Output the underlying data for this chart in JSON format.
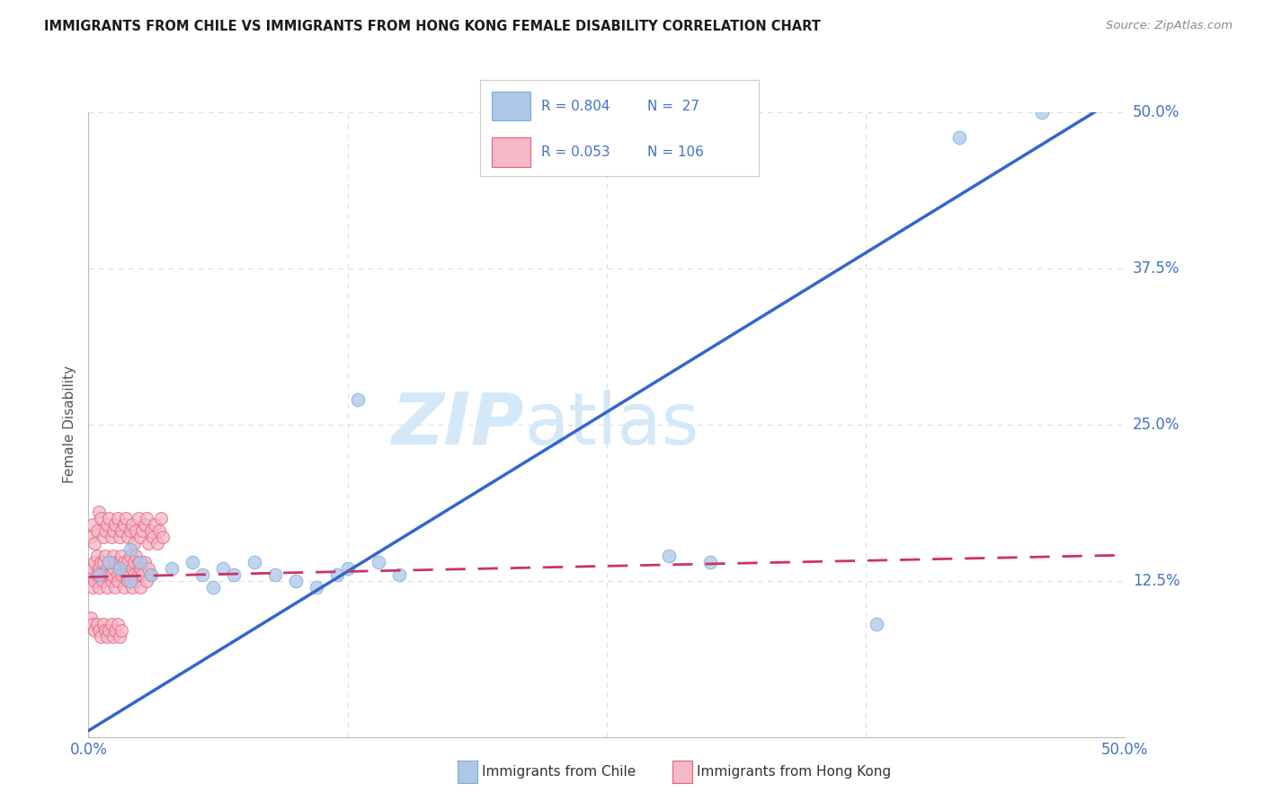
{
  "title": "IMMIGRANTS FROM CHILE VS IMMIGRANTS FROM HONG KONG FEMALE DISABILITY CORRELATION CHART",
  "source": "Source: ZipAtlas.com",
  "ylabel": "Female Disability",
  "xlim": [
    0.0,
    0.5
  ],
  "ylim": [
    0.0,
    0.5
  ],
  "chile_color": "#aec6e8",
  "chile_edge_color": "#7aafd4",
  "hk_color": "#f4b8c8",
  "hk_edge_color": "#e8607a",
  "chile_R": 0.804,
  "chile_N": 27,
  "hk_R": 0.053,
  "hk_N": 106,
  "chile_line_color": "#3366cc",
  "hk_line_color": "#cc3366",
  "watermark_zip": "ZIP",
  "watermark_atlas": "atlas",
  "watermark_color": "#d4e8f8",
  "background_color": "#ffffff",
  "grid_color": "#dddddd",
  "tick_color": "#4472c4",
  "chile_line_slope": 1.02,
  "chile_line_intercept": 0.005,
  "hk_line_slope": 0.035,
  "hk_line_intercept": 0.128,
  "chile_scatter_x": [
    0.005,
    0.01,
    0.015,
    0.02,
    0.02,
    0.025,
    0.03,
    0.04,
    0.05,
    0.055,
    0.06,
    0.065,
    0.07,
    0.08,
    0.09,
    0.1,
    0.11,
    0.12,
    0.125,
    0.13,
    0.14,
    0.15,
    0.28,
    0.3,
    0.38,
    0.42,
    0.46
  ],
  "chile_scatter_y": [
    0.13,
    0.14,
    0.135,
    0.125,
    0.15,
    0.14,
    0.13,
    0.135,
    0.14,
    0.13,
    0.12,
    0.135,
    0.13,
    0.14,
    0.13,
    0.125,
    0.12,
    0.13,
    0.135,
    0.27,
    0.14,
    0.13,
    0.145,
    0.14,
    0.09,
    0.48,
    0.5
  ],
  "hk_scatter_x": [
    0.001,
    0.002,
    0.002,
    0.003,
    0.003,
    0.004,
    0.004,
    0.005,
    0.005,
    0.006,
    0.006,
    0.007,
    0.007,
    0.008,
    0.008,
    0.009,
    0.009,
    0.01,
    0.01,
    0.011,
    0.011,
    0.012,
    0.012,
    0.013,
    0.013,
    0.014,
    0.014,
    0.015,
    0.015,
    0.016,
    0.016,
    0.017,
    0.017,
    0.018,
    0.018,
    0.019,
    0.019,
    0.02,
    0.02,
    0.021,
    0.021,
    0.022,
    0.022,
    0.023,
    0.023,
    0.024,
    0.024,
    0.025,
    0.025,
    0.026,
    0.027,
    0.028,
    0.029,
    0.03,
    0.001,
    0.002,
    0.003,
    0.004,
    0.005,
    0.006,
    0.007,
    0.008,
    0.009,
    0.01,
    0.011,
    0.012,
    0.013,
    0.014,
    0.015,
    0.016,
    0.017,
    0.018,
    0.019,
    0.02,
    0.021,
    0.022,
    0.023,
    0.024,
    0.025,
    0.026,
    0.027,
    0.028,
    0.029,
    0.03,
    0.031,
    0.032,
    0.033,
    0.034,
    0.035,
    0.036,
    0.001,
    0.002,
    0.003,
    0.004,
    0.005,
    0.006,
    0.007,
    0.008,
    0.009,
    0.01,
    0.011,
    0.012,
    0.013,
    0.014,
    0.015,
    0.016
  ],
  "hk_scatter_y": [
    0.13,
    0.135,
    0.12,
    0.14,
    0.125,
    0.13,
    0.145,
    0.12,
    0.135,
    0.14,
    0.13,
    0.125,
    0.14,
    0.13,
    0.145,
    0.12,
    0.135,
    0.13,
    0.14,
    0.125,
    0.13,
    0.145,
    0.135,
    0.12,
    0.14,
    0.13,
    0.125,
    0.14,
    0.135,
    0.13,
    0.145,
    0.12,
    0.14,
    0.135,
    0.13,
    0.125,
    0.14,
    0.13,
    0.145,
    0.135,
    0.12,
    0.14,
    0.13,
    0.125,
    0.145,
    0.13,
    0.14,
    0.135,
    0.12,
    0.13,
    0.14,
    0.125,
    0.135,
    0.13,
    0.16,
    0.17,
    0.155,
    0.165,
    0.18,
    0.175,
    0.16,
    0.165,
    0.17,
    0.175,
    0.16,
    0.165,
    0.17,
    0.175,
    0.16,
    0.165,
    0.17,
    0.175,
    0.16,
    0.165,
    0.17,
    0.155,
    0.165,
    0.175,
    0.16,
    0.165,
    0.17,
    0.175,
    0.155,
    0.165,
    0.16,
    0.17,
    0.155,
    0.165,
    0.175,
    0.16,
    0.095,
    0.09,
    0.085,
    0.09,
    0.085,
    0.08,
    0.09,
    0.085,
    0.08,
    0.085,
    0.09,
    0.08,
    0.085,
    0.09,
    0.08,
    0.085
  ]
}
